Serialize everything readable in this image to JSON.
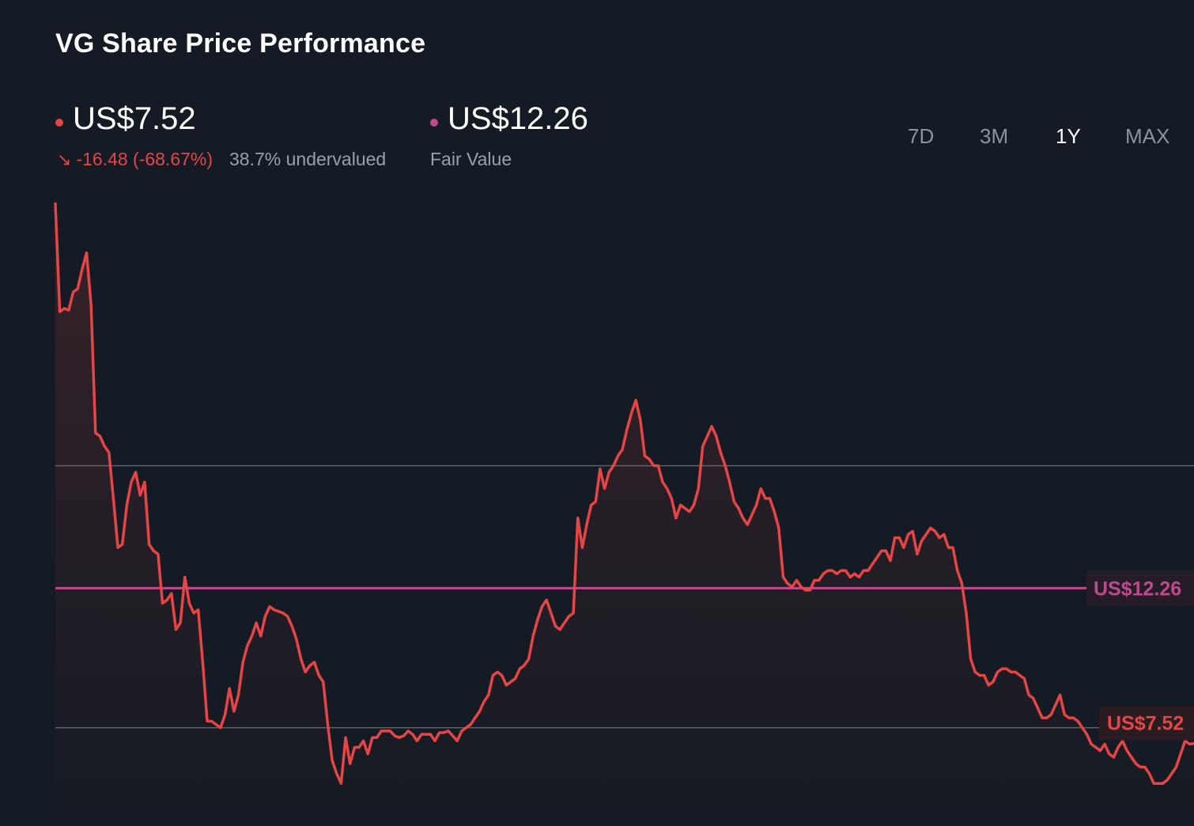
{
  "title": "VG Share Price Performance",
  "price": {
    "value": "US$7.52",
    "change": "-16.48 (-68.67%)",
    "valuation": "38.7% undervalued",
    "color": "#e64545"
  },
  "fair_value": {
    "value": "US$12.26",
    "label": "Fair Value",
    "color": "#c2488e"
  },
  "periods": [
    {
      "label": "7D",
      "active": false
    },
    {
      "label": "3M",
      "active": false
    },
    {
      "label": "1Y",
      "active": true
    },
    {
      "label": "MAX",
      "active": false
    }
  ],
  "icons": {
    "change_arrow": "arrow-down-right-icon"
  },
  "chart_data": {
    "type": "line",
    "series": [
      {
        "values": [
          24.0,
          20.7,
          20.8,
          20.75,
          21.3,
          21.4,
          22.0,
          22.5,
          20.9,
          17.0,
          16.9,
          16.6,
          16.4,
          15.0,
          13.5,
          13.6,
          14.8,
          15.5,
          15.8,
          15.1,
          15.5,
          13.6,
          13.4,
          13.3,
          11.8,
          11.9,
          12.1,
          11.0,
          11.2,
          12.6,
          11.8,
          11.5,
          11.6,
          10.0,
          8.2,
          8.2,
          8.1,
          8.0,
          8.4,
          9.2,
          8.5,
          9.0,
          10.0,
          10.5,
          10.8,
          11.2,
          10.8,
          11.4,
          11.7,
          11.6,
          11.55,
          11.5,
          11.4,
          11.1,
          10.7,
          10.1,
          9.7,
          9.9,
          10.0,
          9.6,
          9.4,
          8.1,
          7.0,
          6.6,
          6.3,
          7.7,
          6.9,
          7.4,
          7.4,
          7.6,
          7.2,
          7.7,
          7.7,
          7.9,
          7.9,
          7.9,
          7.75,
          7.7,
          7.75,
          7.9,
          7.8,
          7.6,
          7.8,
          7.8,
          7.8,
          7.6,
          7.85,
          7.85,
          7.9,
          7.75,
          7.6,
          7.9,
          8.0,
          8.1,
          8.3,
          8.5,
          8.8,
          9.0,
          9.6,
          9.7,
          9.6,
          9.3,
          9.4,
          9.5,
          9.8,
          9.9,
          10.1,
          10.8,
          11.3,
          11.7,
          11.9,
          11.5,
          11.1,
          11.0,
          11.2,
          11.4,
          11.5,
          14.4,
          13.5,
          14.2,
          14.8,
          14.9,
          15.9,
          15.3,
          15.8,
          16.0,
          16.3,
          16.5,
          17.1,
          17.6,
          18.0,
          17.4,
          16.3,
          16.2,
          16.0,
          16.0,
          15.5,
          15.3,
          15.0,
          14.4,
          14.8,
          14.7,
          14.6,
          14.8,
          15.3,
          16.6,
          16.9,
          17.2,
          16.9,
          16.4,
          16.0,
          15.5,
          14.9,
          14.7,
          14.4,
          14.2,
          14.5,
          14.8,
          15.3,
          15.0,
          15.0,
          14.6,
          14.1,
          12.6,
          12.4,
          12.3,
          12.5,
          12.3,
          12.2,
          12.2,
          12.5,
          12.5,
          12.7,
          12.8,
          12.8,
          12.7,
          12.8,
          12.8,
          12.6,
          12.7,
          12.6,
          12.8,
          12.8,
          13.0,
          13.2,
          13.4,
          13.4,
          13.1,
          13.8,
          13.8,
          13.5,
          13.9,
          14.0,
          13.3,
          13.7,
          13.9,
          14.1,
          14.0,
          13.8,
          13.9,
          13.5,
          13.5,
          12.8,
          12.4,
          11.5,
          10.1,
          9.7,
          9.6,
          9.6,
          9.3,
          9.4,
          9.7,
          9.8,
          9.8,
          9.7,
          9.7,
          9.6,
          9.5,
          9.0,
          8.9,
          8.6,
          8.3,
          8.3,
          8.4,
          8.7,
          9.0,
          8.4,
          8.3,
          8.3,
          8.2,
          8.0,
          7.8,
          7.5,
          7.4,
          7.3,
          7.5,
          7.2,
          7.1,
          7.4,
          7.6,
          7.3,
          7.1,
          6.9,
          6.8,
          6.8,
          6.6,
          6.3,
          6.3,
          6.3,
          6.4,
          6.6,
          6.8,
          7.2,
          7.6,
          7.5,
          7.52
        ]
      }
    ],
    "reference_lines": [
      {
        "label": "US$12.26",
        "value": 12.26,
        "color": "#c2488e"
      }
    ],
    "last_value_label": "US$7.52",
    "ylim": [
      5.0,
      25.0
    ],
    "gridlines": [
      8.0,
      16.0
    ],
    "grid": true,
    "line_color": "#e64545"
  }
}
